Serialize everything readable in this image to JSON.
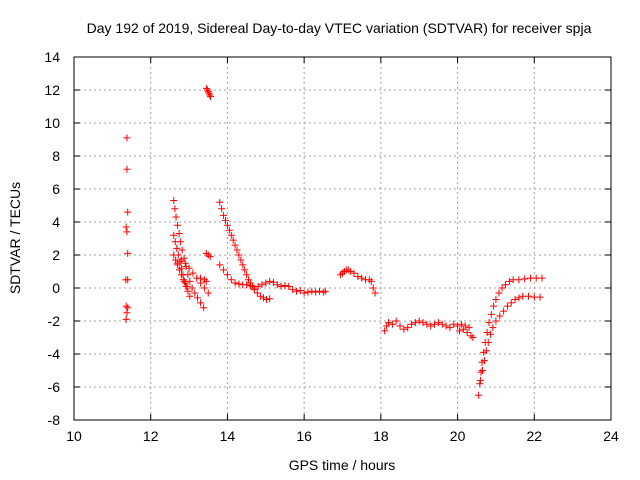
{
  "chart_data": {
    "type": "scatter",
    "title": "Day 192 of 2019, Sidereal Day-to-day VTEC variation (SDTVAR) for receiver spja",
    "xlabel": "GPS time / hours",
    "ylabel": "SDTVAR / TECUs",
    "xlim": [
      10,
      24
    ],
    "ylim": [
      -8,
      14
    ],
    "xticks": [
      10,
      12,
      14,
      16,
      18,
      20,
      22,
      24
    ],
    "yticks": [
      -8,
      -6,
      -4,
      -2,
      0,
      2,
      4,
      6,
      8,
      10,
      12,
      14
    ],
    "grid": true,
    "marker": "plus",
    "color": "#ff0000",
    "segments": [
      {
        "name": "isolated-11.4h",
        "points": [
          [
            11.38,
            9.1
          ],
          [
            11.38,
            7.2
          ],
          [
            11.4,
            4.6
          ],
          [
            11.36,
            3.7
          ],
          [
            11.38,
            3.4
          ],
          [
            11.4,
            2.1
          ],
          [
            11.35,
            0.5
          ],
          [
            11.4,
            0.5
          ],
          [
            11.36,
            -1.1
          ],
          [
            11.4,
            -1.2
          ],
          [
            11.38,
            -1.5
          ],
          [
            11.36,
            -1.9
          ]
        ]
      },
      {
        "name": "spike-13.5h",
        "points": [
          [
            13.45,
            12.1
          ],
          [
            13.48,
            12.0
          ],
          [
            13.5,
            11.9
          ],
          [
            13.52,
            11.8
          ],
          [
            13.54,
            11.7
          ],
          [
            13.56,
            11.6
          ]
        ]
      },
      {
        "name": "short-13.5h",
        "points": [
          [
            13.45,
            2.1
          ],
          [
            13.5,
            2.0
          ],
          [
            13.55,
            1.9
          ],
          [
            13.3,
            0.6
          ],
          [
            13.4,
            0.5
          ],
          [
            13.45,
            0.4
          ]
        ]
      },
      {
        "name": "arc-a",
        "points": [
          [
            12.6,
            5.3
          ],
          [
            12.63,
            4.8
          ],
          [
            12.66,
            4.3
          ],
          [
            12.7,
            3.8
          ],
          [
            12.74,
            3.3
          ],
          [
            12.78,
            2.8
          ],
          [
            12.82,
            2.3
          ],
          [
            12.87,
            1.8
          ],
          [
            12.92,
            1.3
          ],
          [
            12.97,
            0.8
          ],
          [
            13.02,
            0.4
          ],
          [
            13.08,
            0.0
          ],
          [
            13.15,
            -0.3
          ],
          [
            13.22,
            -0.6
          ],
          [
            13.3,
            -0.9
          ],
          [
            13.38,
            -1.2
          ]
        ]
      },
      {
        "name": "arc-b",
        "points": [
          [
            12.6,
            3.2
          ],
          [
            12.64,
            2.8
          ],
          [
            12.68,
            2.4
          ],
          [
            12.72,
            2.0
          ],
          [
            12.76,
            1.6
          ],
          [
            12.8,
            1.2
          ],
          [
            12.84,
            0.8
          ],
          [
            12.88,
            0.4
          ],
          [
            12.92,
            0.1
          ],
          [
            12.97,
            -0.2
          ],
          [
            13.02,
            -0.5
          ]
        ]
      },
      {
        "name": "arc-c",
        "points": [
          [
            12.6,
            2.0
          ],
          [
            12.65,
            1.7
          ],
          [
            12.7,
            1.4
          ],
          [
            12.75,
            1.1
          ],
          [
            12.8,
            0.8
          ],
          [
            12.85,
            0.5
          ],
          [
            12.9,
            0.3
          ],
          [
            12.95,
            0.1
          ]
        ]
      },
      {
        "name": "arc-d",
        "points": [
          [
            12.7,
            1.5
          ],
          [
            12.8,
            1.7
          ],
          [
            12.9,
            1.5
          ],
          [
            13.0,
            1.2
          ],
          [
            13.1,
            0.9
          ],
          [
            13.2,
            0.6
          ],
          [
            13.3,
            0.3
          ],
          [
            13.4,
            0.0
          ],
          [
            13.5,
            -0.3
          ]
        ]
      },
      {
        "name": "descent-13.8h",
        "points": [
          [
            13.8,
            5.2
          ],
          [
            13.85,
            4.8
          ],
          [
            13.9,
            4.4
          ],
          [
            13.95,
            4.1
          ],
          [
            14.0,
            3.8
          ],
          [
            14.05,
            3.5
          ],
          [
            14.1,
            3.2
          ],
          [
            14.15,
            2.9
          ],
          [
            14.2,
            2.6
          ],
          [
            14.25,
            2.3
          ],
          [
            14.3,
            2.0
          ],
          [
            14.35,
            1.7
          ],
          [
            14.4,
            1.4
          ],
          [
            14.45,
            1.1
          ],
          [
            14.5,
            0.8
          ],
          [
            14.55,
            0.5
          ],
          [
            14.6,
            0.3
          ],
          [
            14.65,
            0.1
          ],
          [
            14.7,
            -0.1
          ],
          [
            14.78,
            -0.3
          ],
          [
            14.86,
            -0.5
          ],
          [
            14.94,
            -0.6
          ],
          [
            15.02,
            -0.7
          ],
          [
            15.1,
            -0.65
          ]
        ]
      },
      {
        "name": "track-14h-16.5h",
        "points": [
          [
            13.8,
            1.4
          ],
          [
            13.9,
            1.1
          ],
          [
            14.0,
            0.8
          ],
          [
            14.1,
            0.5
          ],
          [
            14.2,
            0.3
          ],
          [
            14.3,
            0.25
          ],
          [
            14.4,
            0.2
          ],
          [
            14.5,
            0.2
          ],
          [
            14.6,
            0.15
          ],
          [
            14.7,
            0.0
          ],
          [
            14.8,
            0.1
          ],
          [
            14.9,
            0.2
          ],
          [
            15.0,
            0.3
          ],
          [
            15.1,
            0.4
          ],
          [
            15.2,
            0.35
          ],
          [
            15.3,
            0.2
          ],
          [
            15.4,
            0.1
          ],
          [
            15.5,
            0.15
          ],
          [
            15.6,
            0.1
          ],
          [
            15.7,
            -0.1
          ],
          [
            15.8,
            -0.2
          ],
          [
            15.9,
            -0.15
          ],
          [
            16.0,
            -0.3
          ],
          [
            16.1,
            -0.25
          ],
          [
            16.2,
            -0.2
          ],
          [
            16.3,
            -0.25
          ],
          [
            16.4,
            -0.2
          ],
          [
            16.5,
            -0.25
          ],
          [
            16.55,
            -0.2
          ]
        ]
      },
      {
        "name": "arc-17h",
        "points": [
          [
            16.95,
            0.8
          ],
          [
            17.0,
            0.9
          ],
          [
            17.05,
            1.0
          ],
          [
            17.1,
            1.1
          ],
          [
            17.15,
            1.1
          ],
          [
            17.2,
            1.0
          ],
          [
            17.3,
            0.9
          ],
          [
            17.4,
            0.7
          ],
          [
            17.5,
            0.6
          ],
          [
            17.6,
            0.5
          ],
          [
            17.7,
            0.5
          ],
          [
            17.75,
            0.4
          ],
          [
            17.8,
            0.0
          ],
          [
            17.85,
            -0.3
          ]
        ]
      },
      {
        "name": "band-18h-20.4h",
        "points": [
          [
            18.1,
            -2.6
          ],
          [
            18.15,
            -2.3
          ],
          [
            18.2,
            -2.1
          ],
          [
            18.3,
            -2.2
          ],
          [
            18.4,
            -2.0
          ],
          [
            18.5,
            -2.3
          ],
          [
            18.6,
            -2.5
          ],
          [
            18.7,
            -2.4
          ],
          [
            18.8,
            -2.2
          ],
          [
            18.9,
            -2.1
          ],
          [
            19.0,
            -2.0
          ],
          [
            19.1,
            -2.1
          ],
          [
            19.2,
            -2.2
          ],
          [
            19.3,
            -2.3
          ],
          [
            19.4,
            -2.2
          ],
          [
            19.5,
            -2.1
          ],
          [
            19.6,
            -2.2
          ],
          [
            19.7,
            -2.3
          ],
          [
            19.8,
            -2.4
          ],
          [
            19.9,
            -2.2
          ],
          [
            20.0,
            -2.3
          ],
          [
            20.05,
            -2.6
          ],
          [
            20.1,
            -2.2
          ],
          [
            20.15,
            -2.5
          ],
          [
            20.2,
            -2.3
          ],
          [
            20.25,
            -2.7
          ],
          [
            20.3,
            -2.4
          ],
          [
            20.35,
            -2.9
          ],
          [
            20.4,
            -3.0
          ]
        ]
      },
      {
        "name": "recovery-a",
        "points": [
          [
            20.55,
            -6.5
          ],
          [
            20.58,
            -5.8
          ],
          [
            20.61,
            -5.1
          ],
          [
            20.64,
            -4.5
          ],
          [
            20.68,
            -3.9
          ],
          [
            20.72,
            -3.3
          ],
          [
            20.77,
            -2.7
          ],
          [
            20.82,
            -2.1
          ],
          [
            20.88,
            -1.6
          ],
          [
            20.94,
            -1.1
          ],
          [
            21.0,
            -0.7
          ],
          [
            21.08,
            -0.3
          ],
          [
            21.16,
            0.0
          ],
          [
            21.25,
            0.2
          ],
          [
            21.35,
            0.4
          ],
          [
            21.45,
            0.5
          ],
          [
            21.6,
            0.5
          ],
          [
            21.75,
            0.55
          ],
          [
            21.9,
            0.6
          ],
          [
            22.05,
            0.6
          ],
          [
            22.2,
            0.6
          ]
        ]
      },
      {
        "name": "recovery-b",
        "points": [
          [
            20.6,
            -5.6
          ],
          [
            20.65,
            -5.0
          ],
          [
            20.7,
            -4.4
          ],
          [
            20.75,
            -3.8
          ],
          [
            20.8,
            -3.3
          ],
          [
            20.86,
            -2.8
          ],
          [
            20.92,
            -2.4
          ],
          [
            21.0,
            -2.0
          ],
          [
            21.1,
            -1.7
          ],
          [
            21.2,
            -1.4
          ],
          [
            21.3,
            -1.1
          ],
          [
            21.4,
            -0.9
          ],
          [
            21.5,
            -0.7
          ],
          [
            21.6,
            -0.6
          ],
          [
            21.7,
            -0.5
          ],
          [
            21.85,
            -0.5
          ],
          [
            22.0,
            -0.55
          ],
          [
            22.15,
            -0.55
          ]
        ]
      }
    ]
  }
}
